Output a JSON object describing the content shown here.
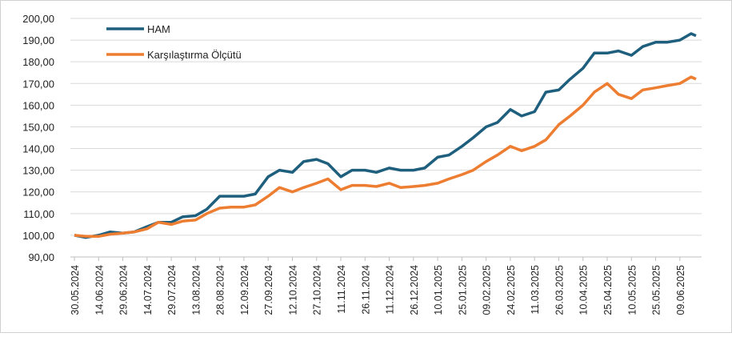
{
  "chart_data": {
    "type": "line",
    "x": [
      "30.05.2024",
      "06.06.2024",
      "14.06.2024",
      "21.06.2024",
      "29.06.2024",
      "06.07.2024",
      "14.07.2024",
      "21.07.2024",
      "29.07.2024",
      "05.08.2024",
      "13.08.2024",
      "20.08.2024",
      "28.08.2024",
      "04.09.2024",
      "12.09.2024",
      "19.09.2024",
      "27.09.2024",
      "04.10.2024",
      "12.10.2024",
      "19.10.2024",
      "27.10.2024",
      "03.11.2024",
      "11.11.2024",
      "18.11.2024",
      "26.11.2024",
      "03.12.2024",
      "11.12.2024",
      "18.12.2024",
      "26.12.2024",
      "02.01.2025",
      "10.01.2025",
      "17.01.2025",
      "25.01.2025",
      "01.02.2025",
      "09.02.2025",
      "16.02.2025",
      "24.02.2025",
      "03.03.2025",
      "11.03.2025",
      "18.03.2025",
      "26.03.2025",
      "02.04.2025",
      "10.04.2025",
      "17.04.2025",
      "25.04.2025",
      "02.05.2025",
      "10.05.2025",
      "17.05.2025",
      "25.05.2025",
      "01.06.2025",
      "09.06.2025",
      "16.06.2025",
      "19.06.2025"
    ],
    "series": [
      {
        "name": "HAM",
        "color": "#1f5f7e",
        "values": [
          100,
          99,
          100,
          101.5,
          101,
          101.5,
          104,
          106,
          106,
          108.5,
          109,
          112,
          118,
          118,
          118,
          119,
          127,
          130,
          129,
          134,
          135,
          133,
          127,
          130,
          130,
          129,
          131,
          130,
          130,
          131,
          136,
          137,
          141,
          145,
          150,
          152,
          158,
          155,
          157,
          166,
          167,
          172,
          177,
          184,
          184,
          185,
          183,
          187,
          189,
          189,
          190,
          193,
          192
        ]
      },
      {
        "name": "Karşılaştırma Ölçütü",
        "color": "#ed7d31",
        "values": [
          100,
          99.5,
          99.5,
          100.5,
          101,
          101.5,
          103,
          106,
          105,
          106.5,
          107,
          110,
          112.5,
          113,
          113,
          114,
          118,
          122,
          120,
          122,
          124,
          126,
          121,
          123,
          123,
          122.5,
          124,
          122,
          122.5,
          123,
          124,
          126,
          128,
          130,
          134,
          137,
          141,
          139,
          141,
          144,
          151,
          155,
          160,
          166,
          170,
          165,
          163,
          167,
          168,
          169,
          170,
          173,
          172
        ]
      }
    ],
    "xticks": [
      "30.05.2024",
      "14.06.2024",
      "29.06.2024",
      "14.07.2024",
      "29.07.2024",
      "13.08.2024",
      "28.08.2024",
      "12.09.2024",
      "27.09.2024",
      "12.10.2024",
      "27.10.2024",
      "11.11.2024",
      "26.11.2024",
      "11.12.2024",
      "26.12.2024",
      "10.01.2025",
      "25.01.2025",
      "09.02.2025",
      "24.02.2025",
      "11.03.2025",
      "26.03.2025",
      "10.04.2025",
      "25.04.2025",
      "10.05.2025",
      "25.05.2025",
      "09.06.2025"
    ],
    "ylim": [
      90,
      200
    ],
    "yticks": [
      {
        "value": 90,
        "label": "90,00"
      },
      {
        "value": 100,
        "label": "100,00"
      },
      {
        "value": 110,
        "label": "110,00"
      },
      {
        "value": 120,
        "label": "120,00"
      },
      {
        "value": 130,
        "label": "130,00"
      },
      {
        "value": 140,
        "label": "140,00"
      },
      {
        "value": 150,
        "label": "150,00"
      },
      {
        "value": 160,
        "label": "160,00"
      },
      {
        "value": 170,
        "label": "170,00"
      },
      {
        "value": 180,
        "label": "180,00"
      },
      {
        "value": 190,
        "label": "190,00"
      },
      {
        "value": 200,
        "label": "200,00"
      }
    ],
    "grid": true,
    "legend": "upper left"
  }
}
